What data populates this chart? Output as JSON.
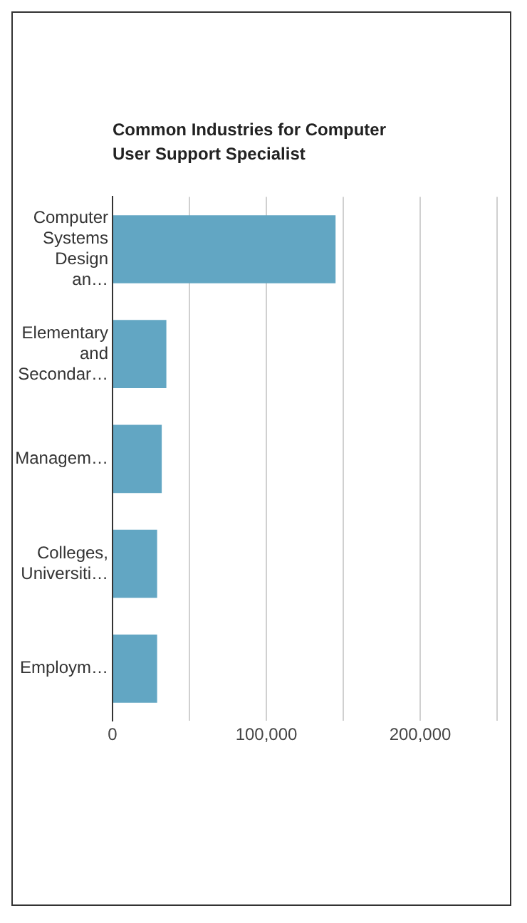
{
  "chart_data": {
    "type": "bar",
    "orientation": "horizontal",
    "title": "Common Industries for Computer User Support Specialist",
    "categories": [
      "Computer Systems Design an…",
      "Elementary and Secondar…",
      "Managem…",
      "Colleges, Universiti…",
      "Employm…"
    ],
    "values": [
      145000,
      35000,
      32000,
      29000,
      29000
    ],
    "color": "#62a6c3",
    "xlim": [
      0,
      250000
    ],
    "xticks": [
      0,
      {
        "value": 50000,
        "label": null
      },
      {
        "value": 100000,
        "label": "100,000"
      },
      {
        "value": 150000,
        "label": null
      },
      {
        "value": 200000,
        "label": "200,000"
      },
      {
        "value": 250000,
        "label": null
      }
    ],
    "grid": "x",
    "legend": false
  }
}
